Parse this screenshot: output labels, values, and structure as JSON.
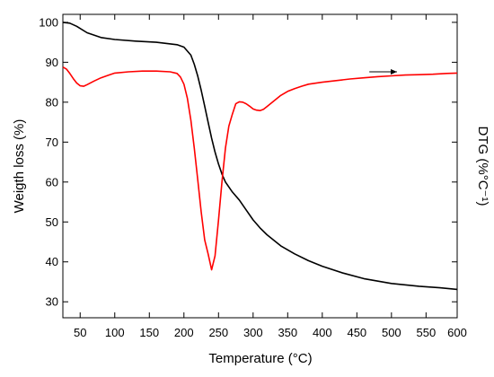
{
  "chart_data": {
    "type": "line",
    "xlabel": "Temperature (°C)",
    "ylabel": "Weigth loss (%)",
    "y2label": "DTG (%°C⁻¹)",
    "xlim": [
      25,
      595
    ],
    "ylim": [
      26,
      102
    ],
    "x_ticks": [
      50,
      100,
      150,
      200,
      250,
      300,
      350,
      400,
      450,
      500,
      550,
      600
    ],
    "y_ticks": [
      30,
      40,
      50,
      60,
      70,
      80,
      90,
      100
    ],
    "grid": false,
    "series": [
      {
        "color": "#000000",
        "x": [
          25,
          35,
          45,
          60,
          80,
          100,
          130,
          160,
          190,
          200,
          210,
          215,
          220,
          225,
          230,
          235,
          240,
          245,
          250,
          255,
          260,
          270,
          280,
          290,
          300,
          310,
          320,
          340,
          360,
          380,
          400,
          430,
          460,
          500,
          540,
          570,
          595
        ],
        "y": [
          100,
          99.8,
          99,
          97.4,
          96.2,
          95.7,
          95.3,
          95.0,
          94.4,
          93.8,
          91.8,
          89.5,
          86.5,
          83,
          79,
          75,
          71,
          67.5,
          64.5,
          62,
          60,
          57.5,
          55.5,
          53,
          50.5,
          48.5,
          46.8,
          44,
          42,
          40.3,
          38.9,
          37.2,
          35.8,
          34.6,
          33.9,
          33.5,
          33.1
        ]
      },
      {
        "color": "#ff0000",
        "x": [
          25,
          30,
          35,
          40,
          45,
          50,
          55,
          60,
          70,
          80,
          90,
          100,
          120,
          140,
          160,
          180,
          190,
          195,
          200,
          205,
          210,
          215,
          220,
          225,
          230,
          235,
          240,
          245,
          250,
          255,
          260,
          265,
          270,
          275,
          280,
          285,
          290,
          295,
          300,
          305,
          310,
          315,
          320,
          330,
          340,
          350,
          360,
          370,
          380,
          400,
          420,
          440,
          460,
          480,
          500,
          520,
          540,
          560,
          580,
          595
        ],
        "y": [
          88.8,
          88.3,
          87.2,
          85.9,
          84.8,
          84.1,
          84.0,
          84.4,
          85.3,
          86.1,
          86.7,
          87.3,
          87.6,
          87.8,
          87.8,
          87.6,
          87.2,
          86.3,
          84.5,
          81.0,
          75.5,
          68.5,
          60.5,
          52.5,
          45.5,
          42.0,
          38.0,
          41.5,
          50.5,
          60.0,
          68.5,
          74.0,
          77.0,
          79.6,
          80.1,
          80.0,
          79.6,
          79.0,
          78.3,
          78.0,
          77.9,
          78.2,
          78.9,
          80.3,
          81.7,
          82.7,
          83.4,
          84.0,
          84.5,
          85.0,
          85.4,
          85.8,
          86.1,
          86.4,
          86.6,
          86.8,
          86.9,
          87.0,
          87.2,
          87.3
        ]
      }
    ],
    "annotation": "arrow pointing right toward right axis"
  }
}
